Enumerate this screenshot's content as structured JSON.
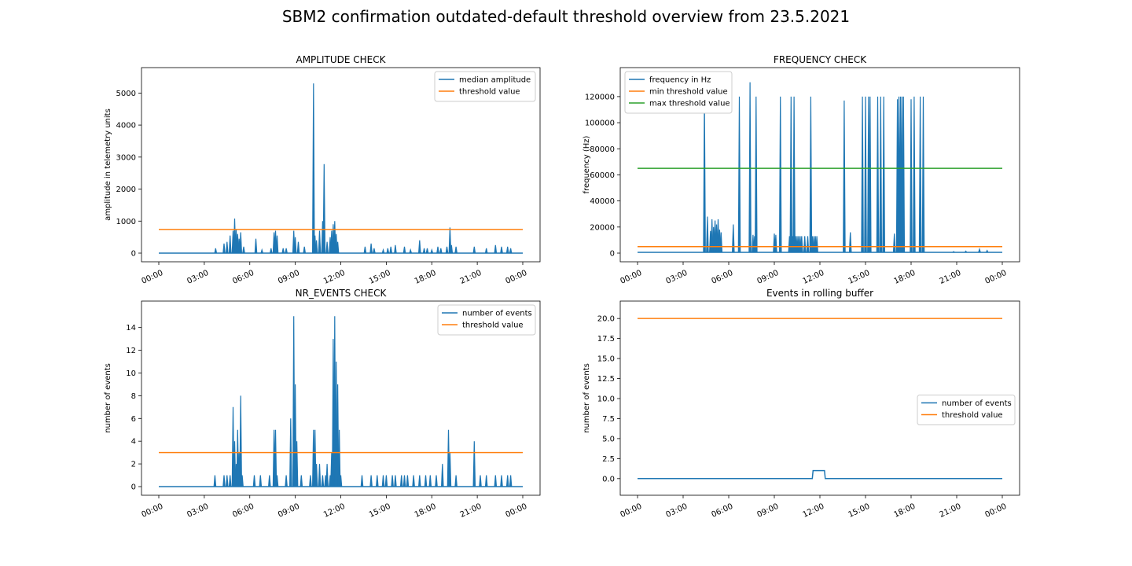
{
  "suptitle": "SBM2 confirmation outdated-default threshold overview from 23.5.2021",
  "colors": {
    "blue": "#1f77b4",
    "orange": "#ff7f0e",
    "green": "#2ca02c"
  },
  "chart_data": [
    {
      "type": "line",
      "title": "AMPLITUDE CHECK",
      "xlabel": "",
      "ylabel": "amplitude in telemetry units",
      "x_unit": "hours",
      "xlim": [
        0,
        24
      ],
      "ylim": [
        0,
        5500
      ],
      "xticks": [
        0,
        3,
        6,
        9,
        12,
        15,
        18,
        21,
        24
      ],
      "xtick_labels": [
        "00:00",
        "03:00",
        "06:00",
        "09:00",
        "12:00",
        "15:00",
        "18:00",
        "21:00",
        "00:00"
      ],
      "yticks": [
        0,
        1000,
        2000,
        3000,
        4000,
        5000
      ],
      "ytick_labels": [
        "0",
        "1000",
        "2000",
        "3000",
        "4000",
        "5000"
      ],
      "legend": "top-right",
      "series": [
        {
          "name": "median amplitude",
          "color": "#1f77b4",
          "baseline": 0,
          "step": false,
          "spikes": [
            [
              3.75,
              150
            ],
            [
              4.3,
              300
            ],
            [
              4.5,
              350
            ],
            [
              4.7,
              550
            ],
            [
              4.9,
              700
            ],
            [
              5.0,
              1080
            ],
            [
              5.1,
              750
            ],
            [
              5.2,
              600
            ],
            [
              5.3,
              450
            ],
            [
              5.4,
              650
            ],
            [
              5.6,
              200
            ],
            [
              6.4,
              450
            ],
            [
              6.8,
              100
            ],
            [
              7.4,
              150
            ],
            [
              7.6,
              650
            ],
            [
              7.7,
              700
            ],
            [
              7.8,
              550
            ],
            [
              8.2,
              150
            ],
            [
              8.4,
              150
            ],
            [
              8.9,
              700
            ],
            [
              9.0,
              500
            ],
            [
              9.2,
              350
            ],
            [
              9.6,
              200
            ],
            [
              10.2,
              5300
            ],
            [
              10.3,
              550
            ],
            [
              10.4,
              400
            ],
            [
              10.6,
              700
            ],
            [
              10.8,
              1000
            ],
            [
              10.9,
              2780
            ],
            [
              11.1,
              350
            ],
            [
              11.3,
              500
            ],
            [
              11.4,
              700
            ],
            [
              11.5,
              900
            ],
            [
              11.6,
              1000
            ],
            [
              11.7,
              600
            ],
            [
              11.8,
              350
            ],
            [
              13.6,
              200
            ],
            [
              14.0,
              300
            ],
            [
              14.2,
              150
            ],
            [
              14.8,
              100
            ],
            [
              15.1,
              150
            ],
            [
              15.3,
              200
            ],
            [
              15.6,
              250
            ],
            [
              16.2,
              200
            ],
            [
              16.6,
              100
            ],
            [
              17.2,
              400
            ],
            [
              17.5,
              150
            ],
            [
              17.7,
              150
            ],
            [
              18.0,
              100
            ],
            [
              18.4,
              200
            ],
            [
              18.6,
              150
            ],
            [
              19.0,
              200
            ],
            [
              19.2,
              800
            ],
            [
              19.3,
              250
            ],
            [
              19.6,
              200
            ],
            [
              20.8,
              200
            ],
            [
              21.6,
              150
            ],
            [
              22.2,
              250
            ],
            [
              22.6,
              200
            ],
            [
              23.0,
              200
            ],
            [
              23.2,
              150
            ]
          ]
        },
        {
          "name": "threshold value",
          "color": "#ff7f0e",
          "constant": 740
        }
      ]
    },
    {
      "type": "line",
      "title": "FREQUENCY CHECK",
      "xlabel": "",
      "ylabel": "frequency (Hz)",
      "x_unit": "hours",
      "xlim": [
        0,
        24
      ],
      "ylim": [
        0,
        135000
      ],
      "xticks": [
        0,
        3,
        6,
        9,
        12,
        15,
        18,
        21,
        24
      ],
      "xtick_labels": [
        "00:00",
        "03:00",
        "06:00",
        "09:00",
        "12:00",
        "15:00",
        "18:00",
        "21:00",
        "00:00"
      ],
      "yticks": [
        0,
        20000,
        40000,
        60000,
        80000,
        100000,
        120000
      ],
      "ytick_labels": [
        "0",
        "20000",
        "40000",
        "60000",
        "80000",
        "100000",
        "120000"
      ],
      "legend": "top-left",
      "series": [
        {
          "name": "frequency in Hz",
          "color": "#1f77b4",
          "baseline": 600,
          "step": false,
          "spikes": [
            [
              4.4,
              120000
            ],
            [
              4.6,
              28000
            ],
            [
              4.8,
              17000
            ],
            [
              4.9,
              26000
            ],
            [
              5.0,
              20000
            ],
            [
              5.1,
              25000
            ],
            [
              5.2,
              22000
            ],
            [
              5.3,
              26000
            ],
            [
              5.4,
              18000
            ],
            [
              5.5,
              16000
            ],
            [
              6.3,
              22000
            ],
            [
              6.7,
              120000
            ],
            [
              7.4,
              131000
            ],
            [
              7.6,
              14000
            ],
            [
              7.7,
              13000
            ],
            [
              7.8,
              120000
            ],
            [
              9.0,
              15000
            ],
            [
              9.1,
              14000
            ],
            [
              9.4,
              120000
            ],
            [
              10.0,
              13000
            ],
            [
              10.1,
              120000
            ],
            [
              10.2,
              13000
            ],
            [
              10.3,
              120000
            ],
            [
              10.4,
              13000
            ],
            [
              10.5,
              13000
            ],
            [
              10.6,
              13000
            ],
            [
              10.7,
              13000
            ],
            [
              10.8,
              13000
            ],
            [
              11.0,
              13000
            ],
            [
              11.2,
              13000
            ],
            [
              11.4,
              120000
            ],
            [
              11.5,
              13000
            ],
            [
              11.6,
              13000
            ],
            [
              11.7,
              13000
            ],
            [
              11.8,
              13000
            ],
            [
              13.6,
              117000
            ],
            [
              14.0,
              16000
            ],
            [
              14.8,
              120000
            ],
            [
              15.0,
              120000
            ],
            [
              15.2,
              120000
            ],
            [
              15.3,
              120000
            ],
            [
              15.8,
              120000
            ],
            [
              16.0,
              120000
            ],
            [
              16.2,
              120000
            ],
            [
              16.9,
              15000
            ],
            [
              17.1,
              118000
            ],
            [
              17.2,
              120000
            ],
            [
              17.3,
              120000
            ],
            [
              17.4,
              120000
            ],
            [
              17.5,
              120000
            ],
            [
              18.0,
              118000
            ],
            [
              18.2,
              120000
            ],
            [
              18.6,
              120000
            ],
            [
              18.8,
              120000
            ],
            [
              20.8,
              1200
            ],
            [
              21.6,
              1500
            ],
            [
              22.5,
              3000
            ],
            [
              23.0,
              2000
            ]
          ]
        },
        {
          "name": "min threshold value",
          "color": "#ff7f0e",
          "constant": 5000
        },
        {
          "name": "max threshold value",
          "color": "#2ca02c",
          "constant": 65000
        }
      ]
    },
    {
      "type": "line",
      "title": "NR_EVENTS CHECK",
      "xlabel": "",
      "ylabel": "number of events",
      "x_unit": "hours",
      "xlim": [
        0,
        24
      ],
      "ylim": [
        0,
        15.5
      ],
      "xticks": [
        0,
        3,
        6,
        9,
        12,
        15,
        18,
        21,
        24
      ],
      "xtick_labels": [
        "00:00",
        "03:00",
        "06:00",
        "09:00",
        "12:00",
        "15:00",
        "18:00",
        "21:00",
        "00:00"
      ],
      "yticks": [
        0,
        2,
        4,
        6,
        8,
        10,
        12,
        14
      ],
      "ytick_labels": [
        "0",
        "2",
        "4",
        "6",
        "8",
        "10",
        "12",
        "14"
      ],
      "legend": "top-right",
      "series": [
        {
          "name": "number of events",
          "color": "#1f77b4",
          "baseline": 0,
          "step": false,
          "spikes": [
            [
              3.7,
              1
            ],
            [
              4.3,
              1
            ],
            [
              4.5,
              1
            ],
            [
              4.7,
              1
            ],
            [
              4.9,
              7
            ],
            [
              5.0,
              4
            ],
            [
              5.1,
              2
            ],
            [
              5.2,
              5
            ],
            [
              5.3,
              3
            ],
            [
              5.4,
              8
            ],
            [
              5.5,
              1
            ],
            [
              6.3,
              1
            ],
            [
              6.7,
              1
            ],
            [
              7.3,
              1
            ],
            [
              7.6,
              5
            ],
            [
              7.7,
              5
            ],
            [
              7.8,
              1
            ],
            [
              8.4,
              1
            ],
            [
              8.7,
              6
            ],
            [
              8.9,
              15
            ],
            [
              9.0,
              9
            ],
            [
              9.1,
              4
            ],
            [
              9.4,
              1
            ],
            [
              10.0,
              1
            ],
            [
              10.2,
              5
            ],
            [
              10.3,
              5
            ],
            [
              10.4,
              2
            ],
            [
              10.6,
              2
            ],
            [
              10.8,
              1
            ],
            [
              11.0,
              1
            ],
            [
              11.1,
              2
            ],
            [
              11.3,
              1
            ],
            [
              11.4,
              3
            ],
            [
              11.5,
              13
            ],
            [
              11.6,
              15
            ],
            [
              11.7,
              11
            ],
            [
              11.8,
              9
            ],
            [
              11.9,
              5
            ],
            [
              12.0,
              1
            ],
            [
              13.4,
              1
            ],
            [
              14.0,
              1
            ],
            [
              14.4,
              1
            ],
            [
              14.8,
              1
            ],
            [
              15.0,
              1
            ],
            [
              15.4,
              1
            ],
            [
              15.6,
              1
            ],
            [
              16.0,
              1
            ],
            [
              16.2,
              1
            ],
            [
              16.4,
              1
            ],
            [
              16.8,
              1
            ],
            [
              17.2,
              1
            ],
            [
              17.6,
              1
            ],
            [
              17.9,
              1
            ],
            [
              18.3,
              1
            ],
            [
              18.7,
              2
            ],
            [
              19.1,
              5
            ],
            [
              19.2,
              3
            ],
            [
              19.6,
              1
            ],
            [
              20.8,
              4
            ],
            [
              21.2,
              1
            ],
            [
              21.6,
              1
            ],
            [
              22.2,
              1
            ],
            [
              22.6,
              1
            ],
            [
              23.0,
              1
            ],
            [
              23.2,
              1
            ]
          ]
        },
        {
          "name": "threshold value",
          "color": "#ff7f0e",
          "constant": 3
        }
      ]
    },
    {
      "type": "line",
      "title": "Events in rolling buffer",
      "xlabel": "",
      "ylabel": "number of events",
      "x_unit": "hours",
      "xlim": [
        0,
        24
      ],
      "ylim": [
        -1,
        21
      ],
      "xticks": [
        0,
        3,
        6,
        9,
        12,
        15,
        18,
        21,
        24
      ],
      "xtick_labels": [
        "00:00",
        "03:00",
        "06:00",
        "09:00",
        "12:00",
        "15:00",
        "18:00",
        "21:00",
        "00:00"
      ],
      "yticks": [
        0,
        2.5,
        5,
        7.5,
        10,
        12.5,
        15,
        17.5,
        20
      ],
      "ytick_labels": [
        "0.0",
        "2.5",
        "5.0",
        "7.5",
        "10.0",
        "12.5",
        "15.0",
        "17.5",
        "20.0"
      ],
      "legend": "center-right",
      "series": [
        {
          "name": "number of events",
          "color": "#1f77b4",
          "points": [
            [
              0,
              0
            ],
            [
              11.5,
              0
            ],
            [
              11.55,
              1
            ],
            [
              12.3,
              1
            ],
            [
              12.35,
              0
            ],
            [
              24,
              0
            ]
          ]
        },
        {
          "name": "threshold value",
          "color": "#ff7f0e",
          "constant": 20
        }
      ]
    }
  ]
}
